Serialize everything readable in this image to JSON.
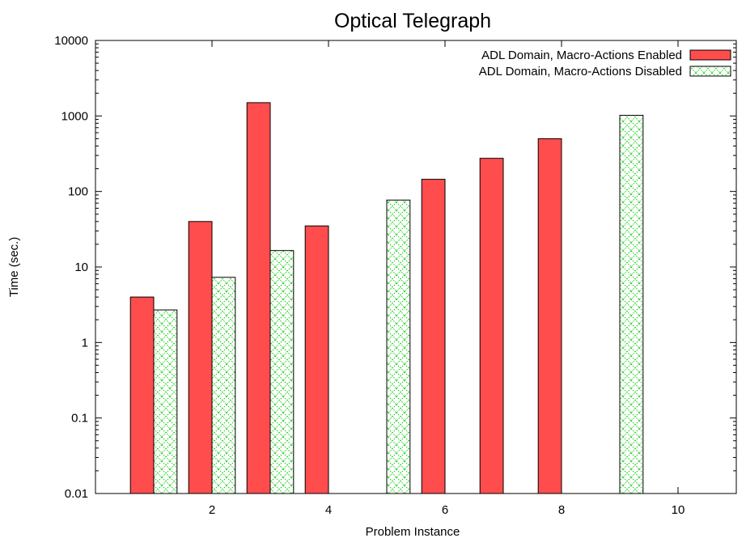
{
  "chart_data": {
    "type": "bar",
    "title": "Optical Telegraph",
    "xlabel": "Problem Instance",
    "ylabel": "Time (sec.)",
    "yscale": "log",
    "ylim": [
      0.01,
      10000
    ],
    "xlim": [
      0,
      11
    ],
    "x_ticks": [
      "2",
      "4",
      "6",
      "8",
      "10"
    ],
    "y_ticks": [
      "0.01",
      "0.1",
      "1",
      "10",
      "100",
      "1000",
      "10000"
    ],
    "legend_position": "top-right",
    "grid": false,
    "series": [
      {
        "name": "ADL Domain, Macro-Actions Enabled",
        "color": "#ff4d4d",
        "pattern": "solid",
        "points": [
          {
            "x": 1,
            "y": 4
          },
          {
            "x": 2,
            "y": 40
          },
          {
            "x": 3,
            "y": 1500
          },
          {
            "x": 4,
            "y": 35
          },
          {
            "x": 6,
            "y": 145
          },
          {
            "x": 7,
            "y": 275
          },
          {
            "x": 8,
            "y": 500
          }
        ]
      },
      {
        "name": "ADL Domain, Macro-Actions Disabled",
        "color": "#00cc00",
        "pattern": "crosshatch",
        "points": [
          {
            "x": 1,
            "y": 2.7
          },
          {
            "x": 2,
            "y": 7.3
          },
          {
            "x": 3,
            "y": 16.5
          },
          {
            "x": 5,
            "y": 77
          },
          {
            "x": 9,
            "y": 1020
          }
        ]
      }
    ]
  }
}
